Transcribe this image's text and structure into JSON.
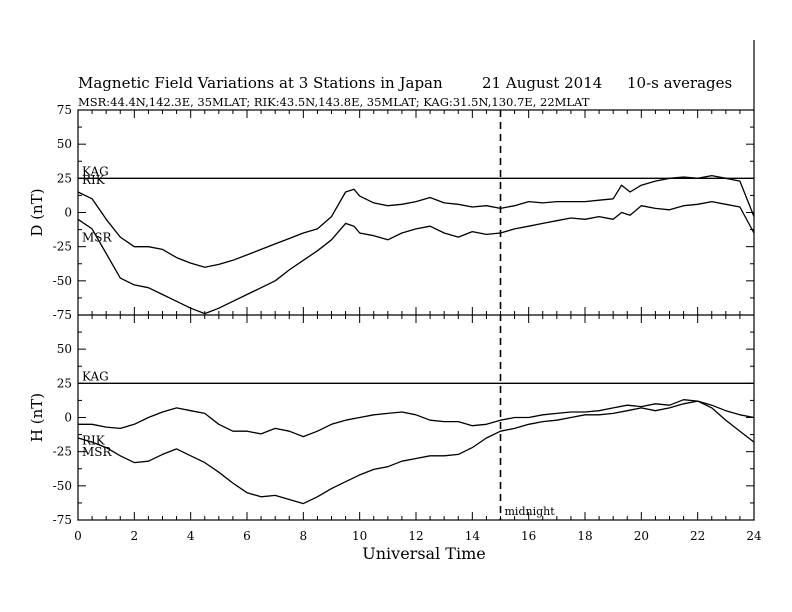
{
  "chart_data": {
    "type": "line",
    "title": "Magnetic Field Variations at 3 Stations in Japan",
    "date": "21  August  2014",
    "averaging": "10-s averages",
    "stations_line": "MSR:44.4N,142.3E, 35MLAT;  RIK:43.5N,143.8E, 35MLAT;  KAG:31.5N,130.7E, 22MLAT",
    "xlabel": "Universal Time",
    "xlim": [
      0,
      24
    ],
    "xticks": [
      "0",
      "2",
      "4",
      "6",
      "8",
      "10",
      "12",
      "14",
      "16",
      "18",
      "20",
      "22",
      "24"
    ],
    "midnight": {
      "x": 15,
      "label": "midnight"
    },
    "grid": false,
    "panels": [
      {
        "ylabel": "D (nT)",
        "ylim": [
          -75,
          75
        ],
        "yticks": [
          "75",
          "50",
          "25",
          "0",
          "-25",
          "-50",
          "-75"
        ],
        "series": [
          {
            "name": "KAG",
            "x": [
              0,
              24
            ],
            "y": [
              25,
              25
            ]
          },
          {
            "name": "RIK",
            "x": [
              0,
              0.5,
              1,
              1.5,
              2,
              2.5,
              3,
              3.5,
              4,
              4.5,
              5,
              5.5,
              6,
              6.5,
              7,
              7.5,
              8,
              8.5,
              9,
              9.5,
              9.8,
              10,
              10.5,
              11,
              11.5,
              12,
              12.5,
              13,
              13.5,
              14,
              14.5,
              15,
              15.5,
              16,
              16.5,
              17,
              17.5,
              18,
              18.5,
              19,
              19.3,
              19.6,
              20,
              20.5,
              21,
              21.5,
              22,
              22.5,
              23,
              23.5,
              24
            ],
            "y": [
              15,
              10,
              -5,
              -18,
              -25,
              -25,
              -27,
              -33,
              -37,
              -40,
              -38,
              -35,
              -31,
              -27,
              -23,
              -19,
              -15,
              -12,
              -3,
              15,
              17,
              12,
              7,
              5,
              6,
              8,
              11,
              7,
              6,
              4,
              5,
              3,
              5,
              8,
              7,
              8,
              8,
              8,
              9,
              10,
              20,
              15,
              20,
              23,
              25,
              26,
              25,
              27,
              25,
              23,
              -3
            ]
          },
          {
            "name": "MSR",
            "x": [
              0,
              0.5,
              1,
              1.5,
              2,
              2.5,
              3,
              3.5,
              4,
              4.5,
              5,
              5.5,
              6,
              6.5,
              7,
              7.5,
              8,
              8.5,
              9,
              9.5,
              9.8,
              10,
              10.5,
              11,
              11.5,
              12,
              12.5,
              13,
              13.5,
              14,
              14.5,
              15,
              15.5,
              16,
              16.5,
              17,
              17.5,
              18,
              18.5,
              19,
              19.3,
              19.6,
              20,
              20.5,
              21,
              21.5,
              22,
              22.5,
              23,
              23.5,
              24
            ],
            "y": [
              -5,
              -12,
              -30,
              -48,
              -53,
              -55,
              -60,
              -65,
              -70,
              -74,
              -70,
              -65,
              -60,
              -55,
              -50,
              -42,
              -35,
              -28,
              -20,
              -8,
              -10,
              -15,
              -17,
              -20,
              -15,
              -12,
              -10,
              -15,
              -18,
              -14,
              -16,
              -15,
              -12,
              -10,
              -8,
              -6,
              -4,
              -5,
              -3,
              -5,
              0,
              -2,
              5,
              3,
              2,
              5,
              6,
              8,
              6,
              4,
              -15
            ]
          }
        ]
      },
      {
        "ylabel": "H (nT)",
        "ylim": [
          -75,
          75
        ],
        "yticks": [
          "75",
          "50",
          "25",
          "0",
          "-25",
          "-50",
          "-75"
        ],
        "series": [
          {
            "name": "KAG",
            "x": [
              0,
              24
            ],
            "y": [
              25,
              25
            ]
          },
          {
            "name": "RIK",
            "x": [
              0,
              0.5,
              1,
              1.5,
              2,
              2.5,
              3,
              3.5,
              4,
              4.5,
              5,
              5.5,
              6,
              6.5,
              7,
              7.5,
              8,
              8.5,
              9,
              9.5,
              10,
              10.5,
              11,
              11.5,
              12,
              12.5,
              13,
              13.5,
              14,
              14.5,
              15,
              15.5,
              16,
              16.5,
              17,
              17.5,
              18,
              18.5,
              19,
              19.5,
              20,
              20.5,
              21,
              21.5,
              22,
              22.5,
              23,
              23.5,
              24
            ],
            "y": [
              -5,
              -5,
              -7,
              -8,
              -5,
              0,
              4,
              7,
              5,
              3,
              -5,
              -10,
              -10,
              -12,
              -8,
              -10,
              -14,
              -10,
              -5,
              -2,
              0,
              2,
              3,
              4,
              2,
              -2,
              -3,
              -3,
              -6,
              -5,
              -2,
              0,
              0,
              2,
              3,
              4,
              4,
              5,
              7,
              9,
              8,
              10,
              9,
              13,
              12,
              9,
              5,
              2,
              0
            ]
          },
          {
            "name": "MSR",
            "x": [
              0,
              0.5,
              1,
              1.5,
              2,
              2.5,
              3,
              3.5,
              4,
              4.5,
              5,
              5.5,
              6,
              6.5,
              7,
              7.5,
              8,
              8.5,
              9,
              9.5,
              10,
              10.5,
              11,
              11.5,
              12,
              12.5,
              13,
              13.5,
              14,
              14.5,
              15,
              15.5,
              16,
              16.5,
              17,
              17.5,
              18,
              18.5,
              19,
              19.5,
              20,
              20.5,
              21,
              21.5,
              22,
              22.5,
              23,
              23.5,
              24
            ],
            "y": [
              -15,
              -18,
              -22,
              -28,
              -33,
              -32,
              -27,
              -23,
              -28,
              -33,
              -40,
              -48,
              -55,
              -58,
              -57,
              -60,
              -63,
              -58,
              -52,
              -47,
              -42,
              -38,
              -36,
              -32,
              -30,
              -28,
              -28,
              -27,
              -22,
              -15,
              -10,
              -8,
              -5,
              -3,
              -2,
              0,
              2,
              2,
              3,
              5,
              7,
              5,
              7,
              10,
              12,
              7,
              -2,
              -10,
              -18
            ]
          }
        ]
      }
    ]
  }
}
